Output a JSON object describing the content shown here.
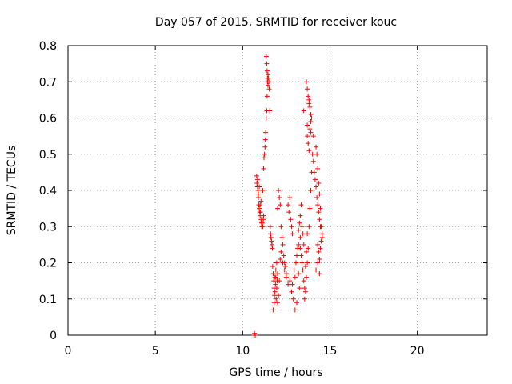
{
  "chart_data": {
    "type": "scatter",
    "title": "Day 057 of 2015, SRMTID for receiver kouc",
    "xlabel": "GPS time / hours",
    "ylabel": "SRMTID / TECUs",
    "xlim": [
      0,
      24
    ],
    "ylim": [
      0,
      0.8
    ],
    "xticks": [
      0,
      5,
      10,
      15,
      20
    ],
    "xtick_labels": [
      "0",
      "5",
      "10",
      "15",
      "20"
    ],
    "yticks": [
      0,
      0.1,
      0.2,
      0.3,
      0.4,
      0.5,
      0.6,
      0.7,
      0.8
    ],
    "ytick_labels": [
      "0",
      "0.1",
      "0.2",
      "0.3",
      "0.4",
      "0.5",
      "0.6",
      "0.7",
      "0.8"
    ],
    "grid": true,
    "marker": "+",
    "color": "#ff0000",
    "series": [
      {
        "name": "SRMTID",
        "x": [
          10.65,
          10.68,
          10.72,
          10.8,
          10.82,
          10.85,
          10.88,
          10.9,
          10.92,
          10.95,
          10.98,
          11.0,
          11.02,
          11.05,
          11.08,
          11.1,
          11.12,
          11.15,
          11.18,
          11.2,
          10.85,
          10.9,
          10.95,
          11.0,
          11.05,
          11.1,
          11.15,
          11.2,
          11.22,
          11.25,
          11.28,
          11.3,
          11.32,
          11.35,
          11.38,
          11.4,
          11.42,
          11.45,
          11.48,
          11.5,
          11.52,
          11.35,
          11.38,
          11.4,
          11.42,
          11.45,
          11.55,
          11.58,
          11.6,
          11.62,
          11.65,
          11.68,
          11.7,
          11.72,
          11.75,
          11.78,
          11.8,
          11.82,
          11.85,
          11.88,
          11.9,
          11.92,
          11.95,
          11.98,
          12.0,
          11.75,
          11.8,
          11.85,
          11.9,
          11.95,
          12.0,
          12.05,
          12.1,
          12.15,
          12.0,
          12.05,
          12.1,
          12.15,
          12.2,
          12.25,
          12.3,
          12.35,
          12.4,
          12.45,
          12.5,
          12.2,
          12.3,
          12.4,
          12.5,
          12.6,
          12.7,
          12.6,
          12.65,
          12.7,
          12.75,
          12.8,
          12.85,
          12.8,
          12.85,
          12.9,
          12.95,
          13.0,
          13.05,
          13.1,
          13.15,
          13.2,
          13.25,
          13.0,
          13.1,
          13.2,
          13.3,
          13.2,
          13.25,
          13.3,
          13.35,
          13.4,
          13.45,
          13.5,
          13.3,
          13.35,
          13.4,
          13.45,
          13.5,
          13.55,
          13.6,
          13.65,
          13.7,
          13.55,
          13.6,
          13.65,
          13.7,
          13.75,
          13.8,
          13.85,
          13.9,
          13.95,
          14.0,
          14.05,
          13.5,
          13.7,
          13.8,
          13.9,
          13.65,
          13.7,
          13.75,
          13.8,
          13.85,
          13.9,
          13.95,
          13.7,
          13.75,
          13.8,
          13.85,
          13.9,
          14.05,
          14.1,
          14.15,
          14.2,
          14.25,
          14.3,
          14.35,
          14.4,
          14.45,
          14.2,
          14.25,
          14.3,
          14.35,
          14.4,
          14.45,
          14.5,
          14.55,
          14.3,
          14.35,
          14.4,
          14.45,
          14.5,
          14.55,
          14.2,
          14.3,
          14.4
        ],
        "y": [
          0.0,
          0.005,
          0.0,
          0.44,
          0.42,
          0.41,
          0.4,
          0.38,
          0.36,
          0.35,
          0.34,
          0.33,
          0.34,
          0.32,
          0.31,
          0.3,
          0.31,
          0.3,
          0.32,
          0.33,
          0.43,
          0.39,
          0.41,
          0.36,
          0.37,
          0.3,
          0.4,
          0.46,
          0.49,
          0.5,
          0.52,
          0.54,
          0.56,
          0.6,
          0.62,
          0.66,
          0.7,
          0.72,
          0.71,
          0.7,
          0.68,
          0.77,
          0.75,
          0.73,
          0.71,
          0.69,
          0.62,
          0.3,
          0.28,
          0.27,
          0.26,
          0.25,
          0.24,
          0.19,
          0.17,
          0.15,
          0.13,
          0.11,
          0.12,
          0.14,
          0.16,
          0.1,
          0.13,
          0.15,
          0.17,
          0.07,
          0.09,
          0.16,
          0.18,
          0.2,
          0.09,
          0.11,
          0.15,
          0.21,
          0.35,
          0.4,
          0.38,
          0.36,
          0.3,
          0.27,
          0.25,
          0.22,
          0.2,
          0.19,
          0.17,
          0.23,
          0.2,
          0.18,
          0.16,
          0.14,
          0.15,
          0.36,
          0.34,
          0.38,
          0.32,
          0.3,
          0.28,
          0.12,
          0.14,
          0.1,
          0.18,
          0.16,
          0.2,
          0.22,
          0.24,
          0.17,
          0.13,
          0.07,
          0.09,
          0.25,
          0.27,
          0.29,
          0.31,
          0.33,
          0.36,
          0.3,
          0.28,
          0.25,
          0.24,
          0.22,
          0.2,
          0.18,
          0.15,
          0.13,
          0.19,
          0.23,
          0.28,
          0.1,
          0.12,
          0.16,
          0.2,
          0.24,
          0.3,
          0.35,
          0.4,
          0.45,
          0.5,
          0.55,
          0.62,
          0.58,
          0.64,
          0.56,
          0.7,
          0.68,
          0.66,
          0.65,
          0.63,
          0.61,
          0.6,
          0.55,
          0.53,
          0.51,
          0.57,
          0.59,
          0.48,
          0.45,
          0.43,
          0.41,
          0.38,
          0.36,
          0.34,
          0.32,
          0.3,
          0.52,
          0.5,
          0.46,
          0.42,
          0.39,
          0.35,
          0.3,
          0.27,
          0.25,
          0.23,
          0.21,
          0.24,
          0.26,
          0.28,
          0.18,
          0.2,
          0.17
        ]
      }
    ]
  }
}
